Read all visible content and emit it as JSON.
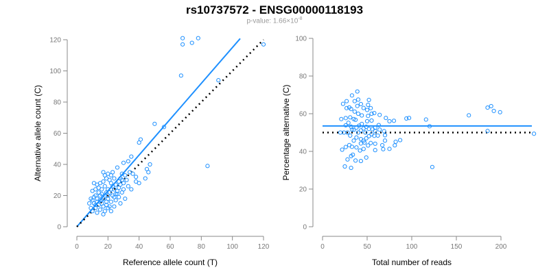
{
  "title": "rs10737572 - ENSG00000118193",
  "pvalue": {
    "prefix": "p-value: 1.66×10",
    "exponent": "-8"
  },
  "colors": {
    "points": "#1e90ff",
    "fit": "#1e90ff",
    "reference": "#000000",
    "axis": "#888888"
  },
  "chart_data": [
    {
      "type": "scatter",
      "name": "allele-counts",
      "xlabel": "Reference allele count (T)",
      "ylabel": "Alternative allele count (C)",
      "xlim": [
        0,
        120
      ],
      "ylim": [
        0,
        120
      ],
      "xticks": [
        "0",
        "20",
        "40",
        "60",
        "80",
        "100",
        "120"
      ],
      "yticks": [
        "0",
        "20",
        "40",
        "60",
        "80",
        "100",
        "120"
      ],
      "fit_line": {
        "slope": 1.15,
        "intercept": 0,
        "x_range": [
          0,
          105
        ]
      },
      "reference_line": {
        "slope": 1,
        "intercept": 0,
        "x_range": [
          0,
          120
        ]
      },
      "points": [
        [
          68,
          121
        ],
        [
          78,
          121
        ],
        [
          68,
          117
        ],
        [
          74,
          118
        ],
        [
          67,
          97
        ],
        [
          91,
          94
        ],
        [
          120,
          117
        ],
        [
          84,
          39
        ],
        [
          56,
          64
        ],
        [
          50,
          66
        ],
        [
          41,
          56
        ],
        [
          40,
          54
        ],
        [
          47,
          40
        ],
        [
          46,
          35
        ],
        [
          40,
          28
        ],
        [
          38,
          32
        ],
        [
          35,
          45
        ],
        [
          33,
          42
        ],
        [
          35,
          24
        ],
        [
          30,
          24
        ],
        [
          26,
          38
        ],
        [
          29,
          34
        ],
        [
          32,
          30
        ],
        [
          30,
          41
        ],
        [
          44,
          31
        ],
        [
          45,
          37
        ],
        [
          38,
          29
        ],
        [
          23,
          35
        ],
        [
          28,
          31
        ],
        [
          20,
          34
        ],
        [
          22,
          33
        ],
        [
          24,
          31
        ],
        [
          19,
          31
        ],
        [
          17,
          29
        ],
        [
          22,
          28
        ],
        [
          25,
          27
        ],
        [
          18,
          26
        ],
        [
          15,
          28
        ],
        [
          13,
          27
        ],
        [
          11,
          28
        ],
        [
          16,
          24
        ],
        [
          20,
          24
        ],
        [
          24,
          24
        ],
        [
          27,
          25
        ],
        [
          21,
          22
        ],
        [
          14,
          22
        ],
        [
          10,
          23
        ],
        [
          12,
          20
        ],
        [
          15,
          20
        ],
        [
          18,
          20
        ],
        [
          23,
          20
        ],
        [
          26,
          21
        ],
        [
          29,
          22
        ],
        [
          13,
          18
        ],
        [
          17,
          18
        ],
        [
          20,
          18
        ],
        [
          22,
          16
        ],
        [
          25,
          17
        ],
        [
          10,
          17
        ],
        [
          8,
          15
        ],
        [
          11,
          15
        ],
        [
          14,
          14
        ],
        [
          16,
          15
        ],
        [
          19,
          14
        ],
        [
          21,
          13
        ],
        [
          24,
          13
        ],
        [
          9,
          12
        ],
        [
          12,
          12
        ],
        [
          15,
          11
        ],
        [
          18,
          10
        ],
        [
          22,
          10
        ],
        [
          10,
          10
        ],
        [
          13,
          9
        ],
        [
          17,
          8
        ],
        [
          20,
          12
        ],
        [
          27,
          19
        ],
        [
          28,
          15
        ],
        [
          31,
          18
        ],
        [
          11,
          19
        ],
        [
          16,
          17
        ],
        [
          19,
          22
        ],
        [
          23,
          26
        ],
        [
          25,
          21
        ],
        [
          14,
          25
        ],
        [
          12,
          14
        ],
        [
          9,
          18
        ],
        [
          30,
          28
        ],
        [
          33,
          26
        ],
        [
          21,
          30
        ],
        [
          18,
          33
        ],
        [
          16,
          21
        ],
        [
          13,
          16
        ],
        [
          20,
          20
        ],
        [
          17,
          13
        ],
        [
          15,
          17
        ],
        [
          24,
          19
        ],
        [
          26,
          23
        ],
        [
          22,
          24
        ],
        [
          28,
          27
        ],
        [
          19,
          16
        ],
        [
          12,
          24
        ],
        [
          27,
          29
        ],
        [
          31,
          33
        ],
        [
          36,
          34
        ],
        [
          34,
          35
        ],
        [
          17,
          35
        ],
        [
          29,
          30
        ]
      ]
    },
    {
      "type": "scatter",
      "name": "percentage-alternative",
      "derived_from": "allele-counts (x = T + C, y = 100*C/(T+C))",
      "xlabel": "Total number of reads",
      "ylabel": "Percentage alternative (C)",
      "xlim": [
        0,
        200
      ],
      "ylim": [
        0,
        100
      ],
      "xticks": [
        "0",
        "50",
        "100",
        "150",
        "200"
      ],
      "yticks": [
        "0",
        "20",
        "40",
        "60",
        "80",
        "100"
      ],
      "fit_line": {
        "y": 53.5
      },
      "reference_line": {
        "y": 50
      }
    }
  ]
}
